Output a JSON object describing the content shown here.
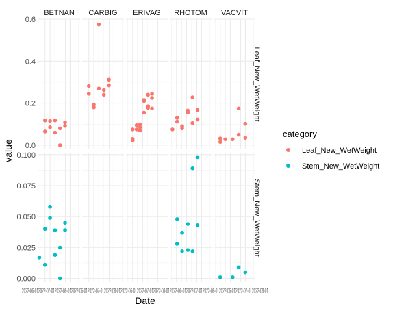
{
  "chart_data": {
    "type": "scatter",
    "facet_columns": [
      "BETNAN",
      "CARBIG",
      "ERIVAG",
      "RHOTOM",
      "VACVIT"
    ],
    "facet_rows": [
      "Leaf_New_WetWeight",
      "Stem_New_WetWeight"
    ],
    "xlabel": "Date",
    "ylabel": "value",
    "x_tick_labels": "2022-06-012022-07-012022-08-012022-06-012022-07-012022-08-012022-06-012022-07-012022-08-012022-06-012022-07-012022-08-012022-06-012022-07-012022-08-01",
    "y_ticks": {
      "Leaf_New_WetWeight": [
        0.0,
        0.2,
        0.4,
        0.6
      ],
      "Stem_New_WetWeight": [
        0.0,
        0.025,
        0.05,
        0.075,
        0.1
      ]
    },
    "y_tick_labels": {
      "Leaf_New_WetWeight": [
        "0.0",
        "0.2",
        "0.4",
        "0.6"
      ],
      "Stem_New_WetWeight": [
        "0.000",
        "0.025",
        "0.050",
        "0.075",
        "0.100"
      ]
    },
    "ylim": {
      "Leaf_New_WetWeight": [
        -0.02,
        0.6
      ],
      "Stem_New_WetWeight": [
        -0.003,
        0.101
      ]
    },
    "xlim_days": [
      -20,
      105
    ],
    "legend": {
      "title": "category",
      "position": "right",
      "entries": [
        {
          "label": "Leaf_New_WetWeight",
          "color": "#F8766D"
        },
        {
          "label": "Stem_New_WetWeight",
          "color": "#00BFC4"
        }
      ]
    },
    "grid": true,
    "theme": "minimal",
    "series": [
      {
        "name": "Leaf_New_WetWeight",
        "color": "#F8766D",
        "row": 0,
        "points": [
          {
            "facet": "BETNAN",
            "d": 0,
            "v": 0.118
          },
          {
            "facet": "BETNAN",
            "d": 0,
            "v": 0.065
          },
          {
            "facet": "BETNAN",
            "d": 15,
            "v": 0.115
          },
          {
            "facet": "BETNAN",
            "d": 15,
            "v": 0.085
          },
          {
            "facet": "BETNAN",
            "d": 30,
            "v": 0.118
          },
          {
            "facet": "BETNAN",
            "d": 30,
            "v": 0.06
          },
          {
            "facet": "BETNAN",
            "d": 45,
            "v": 0.08
          },
          {
            "facet": "BETNAN",
            "d": 45,
            "v": 0.0
          },
          {
            "facet": "BETNAN",
            "d": 60,
            "v": 0.108
          },
          {
            "facet": "BETNAN",
            "d": 60,
            "v": 0.092
          },
          {
            "facet": "CARBIG",
            "d": 0,
            "v": 0.282
          },
          {
            "facet": "CARBIG",
            "d": 0,
            "v": 0.245
          },
          {
            "facet": "CARBIG",
            "d": 15,
            "v": 0.192
          },
          {
            "facet": "CARBIG",
            "d": 15,
            "v": 0.18
          },
          {
            "facet": "CARBIG",
            "d": 30,
            "v": 0.575
          },
          {
            "facet": "CARBIG",
            "d": 30,
            "v": 0.27
          },
          {
            "facet": "CARBIG",
            "d": 45,
            "v": 0.262
          },
          {
            "facet": "CARBIG",
            "d": 45,
            "v": 0.24
          },
          {
            "facet": "CARBIG",
            "d": 60,
            "v": 0.312
          },
          {
            "facet": "CARBIG",
            "d": 60,
            "v": 0.285
          },
          {
            "facet": "ERIVAG",
            "d": 0,
            "v": 0.075
          },
          {
            "facet": "ERIVAG",
            "d": 0,
            "v": 0.03
          },
          {
            "facet": "ERIVAG",
            "d": 0,
            "v": 0.022
          },
          {
            "facet": "ERIVAG",
            "d": 12,
            "v": 0.095
          },
          {
            "facet": "ERIVAG",
            "d": 12,
            "v": 0.075
          },
          {
            "facet": "ERIVAG",
            "d": 22,
            "v": 0.098
          },
          {
            "facet": "ERIVAG",
            "d": 22,
            "v": 0.085
          },
          {
            "facet": "ERIVAG",
            "d": 22,
            "v": 0.07
          },
          {
            "facet": "ERIVAG",
            "d": 34,
            "v": 0.215
          },
          {
            "facet": "ERIVAG",
            "d": 34,
            "v": 0.21
          },
          {
            "facet": "ERIVAG",
            "d": 34,
            "v": 0.155
          },
          {
            "facet": "ERIVAG",
            "d": 46,
            "v": 0.24
          },
          {
            "facet": "ERIVAG",
            "d": 46,
            "v": 0.185
          },
          {
            "facet": "ERIVAG",
            "d": 46,
            "v": 0.178
          },
          {
            "facet": "ERIVAG",
            "d": 58,
            "v": 0.245
          },
          {
            "facet": "ERIVAG",
            "d": 58,
            "v": 0.225
          },
          {
            "facet": "ERIVAG",
            "d": 58,
            "v": 0.175
          },
          {
            "facet": "RHOTOM",
            "d": -12,
            "v": 0.075
          },
          {
            "facet": "RHOTOM",
            "d": 2,
            "v": 0.13
          },
          {
            "facet": "RHOTOM",
            "d": 2,
            "v": 0.112
          },
          {
            "facet": "RHOTOM",
            "d": 17,
            "v": 0.09
          },
          {
            "facet": "RHOTOM",
            "d": 17,
            "v": 0.08
          },
          {
            "facet": "RHOTOM",
            "d": 34,
            "v": 0.165
          },
          {
            "facet": "RHOTOM",
            "d": 34,
            "v": 0.155
          },
          {
            "facet": "RHOTOM",
            "d": 48,
            "v": 0.228
          },
          {
            "facet": "RHOTOM",
            "d": 48,
            "v": 0.105
          },
          {
            "facet": "RHOTOM",
            "d": 63,
            "v": 0.168
          },
          {
            "facet": "RHOTOM",
            "d": 63,
            "v": 0.122
          },
          {
            "facet": "VACVIT",
            "d": 0,
            "v": 0.032
          },
          {
            "facet": "VACVIT",
            "d": 0,
            "v": 0.015
          },
          {
            "facet": "VACVIT",
            "d": 15,
            "v": 0.028
          },
          {
            "facet": "VACVIT",
            "d": 37,
            "v": 0.028
          },
          {
            "facet": "VACVIT",
            "d": 55,
            "v": 0.175
          },
          {
            "facet": "VACVIT",
            "d": 55,
            "v": 0.05
          },
          {
            "facet": "VACVIT",
            "d": 75,
            "v": 0.102
          },
          {
            "facet": "VACVIT",
            "d": 75,
            "v": 0.035
          }
        ]
      },
      {
        "name": "Stem_New_WetWeight",
        "color": "#00BFC4",
        "row": 1,
        "points": [
          {
            "facet": "BETNAN",
            "d": -17,
            "v": 0.017
          },
          {
            "facet": "BETNAN",
            "d": 0,
            "v": 0.04
          },
          {
            "facet": "BETNAN",
            "d": 0,
            "v": 0.011
          },
          {
            "facet": "BETNAN",
            "d": 15,
            "v": 0.058
          },
          {
            "facet": "BETNAN",
            "d": 15,
            "v": 0.049
          },
          {
            "facet": "BETNAN",
            "d": 30,
            "v": 0.039
          },
          {
            "facet": "BETNAN",
            "d": 30,
            "v": 0.019
          },
          {
            "facet": "BETNAN",
            "d": 45,
            "v": 0.025
          },
          {
            "facet": "BETNAN",
            "d": 45,
            "v": 0.0
          },
          {
            "facet": "BETNAN",
            "d": 60,
            "v": 0.045
          },
          {
            "facet": "BETNAN",
            "d": 60,
            "v": 0.039
          },
          {
            "facet": "RHOTOM",
            "d": 2,
            "v": 0.048
          },
          {
            "facet": "RHOTOM",
            "d": 2,
            "v": 0.028
          },
          {
            "facet": "RHOTOM",
            "d": 17,
            "v": 0.037
          },
          {
            "facet": "RHOTOM",
            "d": 17,
            "v": 0.022
          },
          {
            "facet": "RHOTOM",
            "d": 34,
            "v": 0.044
          },
          {
            "facet": "RHOTOM",
            "d": 34,
            "v": 0.023
          },
          {
            "facet": "RHOTOM",
            "d": 48,
            "v": 0.089
          },
          {
            "facet": "RHOTOM",
            "d": 48,
            "v": 0.022
          },
          {
            "facet": "RHOTOM",
            "d": 63,
            "v": 0.098
          },
          {
            "facet": "RHOTOM",
            "d": 63,
            "v": 0.043
          },
          {
            "facet": "VACVIT",
            "d": 0,
            "v": 0.001
          },
          {
            "facet": "VACVIT",
            "d": 37,
            "v": 0.001
          },
          {
            "facet": "VACVIT",
            "d": 55,
            "v": 0.009
          },
          {
            "facet": "VACVIT",
            "d": 75,
            "v": 0.005
          }
        ]
      }
    ]
  }
}
